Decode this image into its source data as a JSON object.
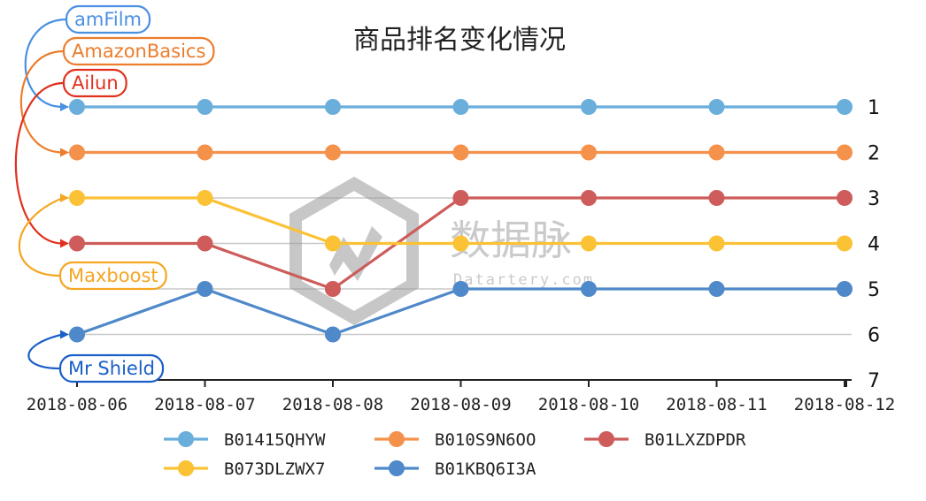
{
  "chart_data": {
    "type": "line",
    "title": "商品排名变化情况",
    "x": [
      "2018-08-06",
      "2018-08-07",
      "2018-08-08",
      "2018-08-09",
      "2018-08-10",
      "2018-08-11",
      "2018-08-12"
    ],
    "y_ticks": [
      "1",
      "2",
      "3",
      "4",
      "5",
      "6",
      "7"
    ],
    "ylim": [
      1,
      7
    ],
    "y_inverted": true,
    "y_axis_position": "right",
    "grid": "horizontal",
    "legend_position": "bottom",
    "series": [
      {
        "name": "B01415QHYW",
        "color": "#6aaedb",
        "values": [
          1,
          1,
          1,
          1,
          1,
          1,
          1
        ],
        "label": "amFilm",
        "label_color": "#4a90e2"
      },
      {
        "name": "B010S9N6OO",
        "color": "#f4914b",
        "values": [
          2,
          2,
          2,
          2,
          2,
          2,
          2
        ],
        "label": "AmazonBasics",
        "label_color": "#ec7d2c"
      },
      {
        "name": "B01LXZDPDR",
        "color": "#cd5c5a",
        "values": [
          4,
          4,
          5,
          3,
          3,
          3,
          3
        ],
        "label": "Ailun",
        "label_color": "#e0301e"
      },
      {
        "name": "B073DLZWX7",
        "color": "#fbc235",
        "values": [
          3,
          3,
          4,
          4,
          4,
          4,
          4
        ],
        "label": "Maxboost",
        "label_color": "#f5a623"
      },
      {
        "name": "B01KBQ6I3A",
        "color": "#4f89c9",
        "values": [
          6,
          5,
          6,
          5,
          5,
          5,
          5
        ],
        "label": "Mr Shield",
        "label_color": "#1a5fc8"
      }
    ]
  },
  "watermark": {
    "text": "数据脉",
    "subtext": "Datartery.com"
  }
}
